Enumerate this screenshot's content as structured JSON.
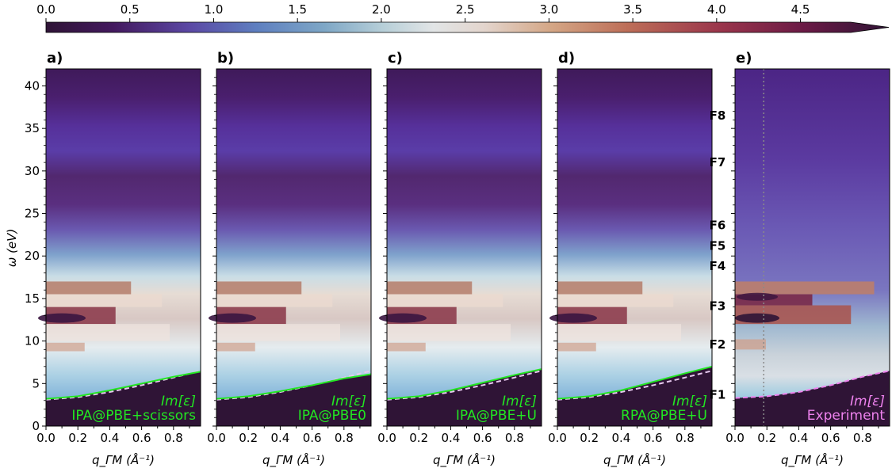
{
  "colorbar": {
    "ticks": [
      "0.0",
      "0.5",
      "1.0",
      "1.5",
      "2.0",
      "2.5",
      "3.0",
      "3.5",
      "4.0",
      "4.5"
    ],
    "range": [
      0,
      4.8
    ],
    "extend": "max"
  },
  "chart_data": [
    {
      "type": "heatmap",
      "panel": "a)",
      "legend_line1": "Im[ε]",
      "legend_line2": "IPA@PBE+scissors",
      "legend_color": "#22e622",
      "xlabel": "q_ΓM (Å⁻¹)",
      "ylabel": "ω (eV)",
      "xlim": [
        0,
        0.97
      ],
      "ylim": [
        0,
        42
      ],
      "xticks": [
        "0.0",
        "0.2",
        "0.4",
        "0.6",
        "0.8"
      ],
      "yticks": [
        "0",
        "5",
        "10",
        "15",
        "20",
        "25",
        "30",
        "35",
        "40"
      ],
      "solid_curve": {
        "x": [
          0,
          0.2,
          0.4,
          0.6,
          0.8,
          0.97
        ],
        "y": [
          3.2,
          3.5,
          4.2,
          5.0,
          5.8,
          6.4
        ]
      },
      "dashed_curve": {
        "x": [
          0,
          0.2,
          0.4,
          0.6,
          0.8,
          0.97
        ],
        "y": [
          3.1,
          3.4,
          4.0,
          4.8,
          5.7,
          6.5
        ]
      }
    },
    {
      "type": "heatmap",
      "panel": "b)",
      "legend_line1": "Im[ε]",
      "legend_line2": "IPA@PBE0",
      "legend_color": "#22e622",
      "xlabel": "q_ΓM (Å⁻¹)",
      "xlim": [
        0,
        0.97
      ],
      "ylim": [
        0,
        42
      ],
      "xticks": [
        "0.0",
        "0.2",
        "0.4",
        "0.6",
        "0.8"
      ],
      "solid_curve": {
        "x": [
          0,
          0.2,
          0.4,
          0.6,
          0.8,
          0.97
        ],
        "y": [
          3.2,
          3.5,
          4.1,
          4.8,
          5.6,
          6.1
        ]
      },
      "dashed_curve": {
        "x": [
          0,
          0.2,
          0.4,
          0.6,
          0.8,
          0.97
        ],
        "y": [
          3.1,
          3.4,
          4.0,
          4.8,
          5.7,
          6.5
        ]
      }
    },
    {
      "type": "heatmap",
      "panel": "c)",
      "legend_line1": "Im[ε]",
      "legend_line2": "IPA@PBE+U",
      "legend_color": "#22e622",
      "xlabel": "q_ΓM (Å⁻¹)",
      "xlim": [
        0,
        0.97
      ],
      "ylim": [
        0,
        42
      ],
      "xticks": [
        "0.0",
        "0.2",
        "0.4",
        "0.6",
        "0.8"
      ],
      "solid_curve": {
        "x": [
          0,
          0.2,
          0.4,
          0.6,
          0.8,
          0.97
        ],
        "y": [
          3.2,
          3.5,
          4.2,
          5.1,
          6.0,
          6.7
        ]
      },
      "dashed_curve": {
        "x": [
          0,
          0.2,
          0.4,
          0.6,
          0.8,
          0.97
        ],
        "y": [
          3.1,
          3.4,
          4.0,
          4.8,
          5.7,
          6.5
        ]
      }
    },
    {
      "type": "heatmap",
      "panel": "d)",
      "legend_line1": "Im[ε]",
      "legend_line2": "RPA@PBE+U",
      "legend_color": "#22e622",
      "xlabel": "q_ΓM (Å⁻¹)",
      "xlim": [
        0,
        0.97
      ],
      "ylim": [
        0,
        42
      ],
      "xticks": [
        "0.0",
        "0.2",
        "0.4",
        "0.6",
        "0.8"
      ],
      "solid_curve": {
        "x": [
          0,
          0.2,
          0.4,
          0.6,
          0.8,
          0.97
        ],
        "y": [
          3.2,
          3.5,
          4.2,
          5.2,
          6.2,
          7.0
        ]
      },
      "dashed_curve": {
        "x": [
          0,
          0.2,
          0.4,
          0.6,
          0.8,
          0.97
        ],
        "y": [
          3.1,
          3.4,
          4.0,
          4.8,
          5.7,
          6.5
        ]
      }
    },
    {
      "type": "heatmap",
      "panel": "e)",
      "legend_line1": "Im[ε]",
      "legend_line2": "Experiment",
      "legend_color": "#ee82ee",
      "xlabel": "q_ΓM (Å⁻¹)",
      "xlim": [
        0,
        0.97
      ],
      "ylim": [
        0,
        42
      ],
      "xticks": [
        "0.0",
        "0.2",
        "0.4",
        "0.6",
        "0.8"
      ],
      "vline_x": 0.18,
      "dashed_curve": {
        "x": [
          0,
          0.2,
          0.4,
          0.6,
          0.8,
          0.97
        ],
        "y": [
          3.3,
          3.5,
          4.0,
          4.8,
          5.8,
          6.5
        ]
      },
      "features": [
        {
          "label": "F1",
          "y": 3.7
        },
        {
          "label": "F2",
          "y": 9.6
        },
        {
          "label": "F3",
          "y": 14.1
        },
        {
          "label": "F4",
          "y": 18.8
        },
        {
          "label": "F5",
          "y": 21.2
        },
        {
          "label": "F6",
          "y": 23.6
        },
        {
          "label": "F7",
          "y": 31.0
        },
        {
          "label": "F8",
          "y": 36.5
        }
      ]
    }
  ]
}
